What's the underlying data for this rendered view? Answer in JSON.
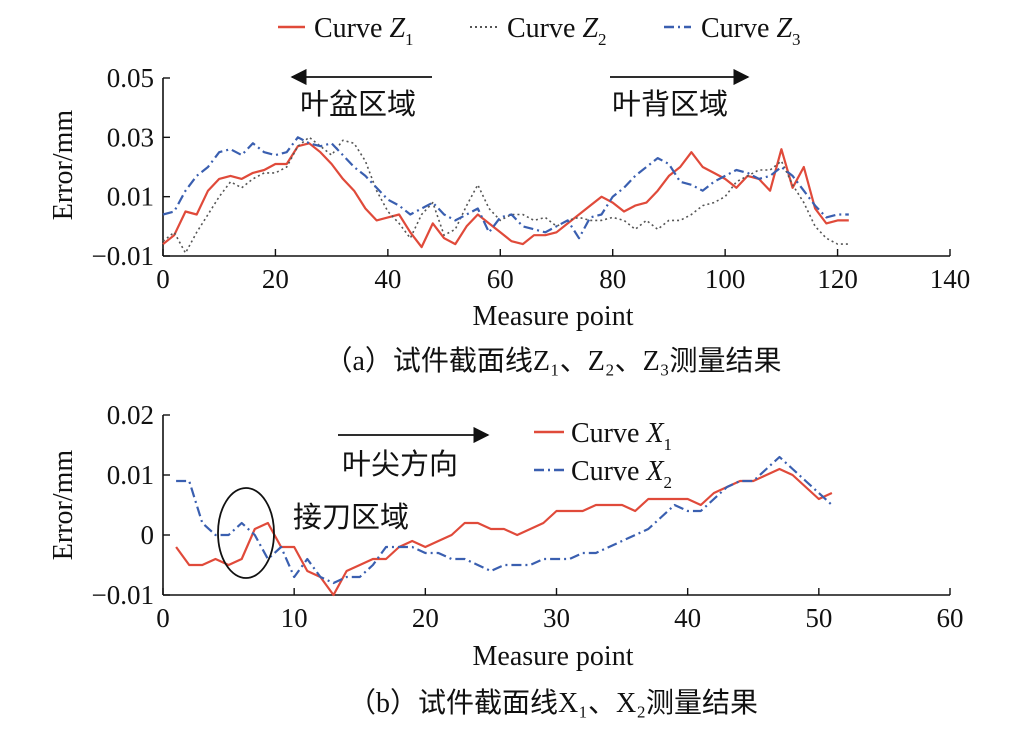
{
  "chart_data": [
    {
      "type": "line",
      "caption": "（a）试件截面线Z₁、Z₂、Z₃测量结果",
      "xlabel": "Measure point",
      "ylabel": "Error/mm",
      "xlim": [
        0,
        140
      ],
      "ylim": [
        -0.01,
        0.05
      ],
      "xticks": [
        "0",
        "20",
        "40",
        "60",
        "80",
        "100",
        "120",
        "140"
      ],
      "yticks": [
        "−0.01",
        "0.01",
        "0.03",
        "0.05"
      ],
      "legend_position": "top",
      "annotations": [
        {
          "text": "叶盆区域",
          "arrow": "left"
        },
        {
          "text": "叶背区域",
          "arrow": "right"
        }
      ],
      "series": [
        {
          "name": "Curve Z1",
          "label_main": "Curve ",
          "label_var": "Z",
          "label_sub": "1",
          "color": "#e04a3a",
          "dash": "solid",
          "x": [
            0,
            2,
            4,
            6,
            8,
            10,
            12,
            14,
            16,
            18,
            20,
            22,
            24,
            26,
            28,
            30,
            32,
            34,
            36,
            38,
            40,
            42,
            44,
            46,
            48,
            50,
            52,
            54,
            56,
            58,
            60,
            62,
            64,
            66,
            68,
            70,
            72,
            74,
            76,
            78,
            80,
            82,
            84,
            86,
            88,
            90,
            92,
            94,
            96,
            98,
            100,
            102,
            104,
            106,
            108,
            110,
            112,
            114,
            116,
            118,
            120,
            122
          ],
          "y": [
            -0.006,
            -0.003,
            0.005,
            0.004,
            0.012,
            0.016,
            0.017,
            0.016,
            0.018,
            0.019,
            0.021,
            0.021,
            0.027,
            0.028,
            0.025,
            0.021,
            0.016,
            0.012,
            0.006,
            0.002,
            0.003,
            0.004,
            -0.002,
            -0.007,
            0.001,
            -0.004,
            -0.006,
            0.0,
            0.004,
            0.001,
            -0.002,
            -0.005,
            -0.006,
            -0.003,
            -0.003,
            -0.002,
            0.001,
            0.004,
            0.007,
            0.01,
            0.008,
            0.005,
            0.007,
            0.008,
            0.012,
            0.017,
            0.02,
            0.025,
            0.02,
            0.018,
            0.016,
            0.013,
            0.017,
            0.016,
            0.012,
            0.026,
            0.013,
            0.02,
            0.006,
            0.001,
            0.002,
            0.002
          ]
        },
        {
          "name": "Curve Z2",
          "label_main": "Curve ",
          "label_var": "Z",
          "label_sub": "2",
          "color": "#555555",
          "dash": "dotted",
          "x": [
            0,
            2,
            4,
            6,
            8,
            10,
            12,
            14,
            16,
            18,
            20,
            22,
            24,
            26,
            28,
            30,
            32,
            34,
            36,
            38,
            40,
            42,
            44,
            46,
            48,
            50,
            52,
            54,
            56,
            58,
            60,
            62,
            64,
            66,
            68,
            70,
            72,
            74,
            76,
            78,
            80,
            82,
            84,
            86,
            88,
            90,
            92,
            94,
            96,
            98,
            100,
            102,
            104,
            106,
            108,
            110,
            112,
            114,
            116,
            118,
            120,
            122
          ],
          "y": [
            -0.005,
            -0.002,
            -0.009,
            -0.002,
            0.004,
            0.01,
            0.015,
            0.013,
            0.016,
            0.018,
            0.018,
            0.02,
            0.027,
            0.03,
            0.027,
            0.024,
            0.029,
            0.028,
            0.022,
            0.012,
            0.005,
            0.001,
            -0.004,
            0.004,
            0.008,
            -0.003,
            -0.001,
            0.007,
            0.014,
            0.006,
            0.002,
            0.004,
            0.004,
            0.002,
            0.003,
            0.0,
            0.002,
            0.003,
            0.002,
            0.002,
            0.003,
            0.002,
            -0.001,
            0.002,
            -0.001,
            0.002,
            0.002,
            0.004,
            0.007,
            0.008,
            0.01,
            0.015,
            0.017,
            0.019,
            0.019,
            0.022,
            0.014,
            0.008,
            0.0,
            -0.004,
            -0.006,
            -0.006
          ]
        },
        {
          "name": "Curve Z3",
          "label_main": "Curve ",
          "label_var": "Z",
          "label_sub": "3",
          "color": "#3a5fb0",
          "dash": "dashdot",
          "x": [
            0,
            2,
            4,
            6,
            8,
            10,
            12,
            14,
            16,
            18,
            20,
            22,
            24,
            26,
            28,
            30,
            32,
            34,
            36,
            38,
            40,
            42,
            44,
            46,
            48,
            50,
            52,
            54,
            56,
            58,
            60,
            62,
            64,
            66,
            68,
            70,
            72,
            74,
            76,
            78,
            80,
            82,
            84,
            86,
            88,
            90,
            92,
            94,
            96,
            98,
            100,
            102,
            104,
            106,
            108,
            110,
            112,
            114,
            116,
            118,
            120,
            122
          ],
          "y": [
            0.004,
            0.005,
            0.012,
            0.017,
            0.02,
            0.025,
            0.026,
            0.024,
            0.028,
            0.025,
            0.024,
            0.025,
            0.03,
            0.028,
            0.027,
            0.028,
            0.024,
            0.02,
            0.017,
            0.013,
            0.009,
            0.007,
            0.004,
            0.006,
            0.008,
            0.004,
            0.002,
            0.004,
            0.006,
            -0.002,
            0.003,
            0.004,
            0.0,
            -0.001,
            -0.002,
            0.0,
            0.002,
            -0.004,
            0.003,
            0.004,
            0.01,
            0.013,
            0.017,
            0.02,
            0.023,
            0.021,
            0.015,
            0.014,
            0.012,
            0.015,
            0.017,
            0.019,
            0.018,
            0.016,
            0.017,
            0.02,
            0.017,
            0.012,
            0.007,
            0.003,
            0.004,
            0.004
          ]
        }
      ]
    },
    {
      "type": "line",
      "caption": "（b）试件截面线X₁、X₂测量结果",
      "xlabel": "Measure point",
      "ylabel": "Error/mm",
      "xlim": [
        0,
        60
      ],
      "ylim": [
        -0.01,
        0.02
      ],
      "xticks": [
        "0",
        "10",
        "20",
        "30",
        "40",
        "50",
        "60"
      ],
      "yticks": [
        "−0.01",
        "0",
        "0.01",
        "0.02"
      ],
      "legend_position": "top-right",
      "annotations": [
        {
          "text": "叶尖方向",
          "arrow": "right"
        },
        {
          "text": "接刀区域",
          "marker": "ellipse"
        }
      ],
      "series": [
        {
          "name": "Curve X1",
          "label_main": "Curve ",
          "label_var": "X",
          "label_sub": "1",
          "color": "#e04a3a",
          "dash": "solid",
          "x": [
            1,
            2,
            3,
            4,
            5,
            6,
            7,
            8,
            9,
            10,
            11,
            12,
            13,
            14,
            15,
            16,
            17,
            18,
            19,
            20,
            21,
            22,
            23,
            24,
            25,
            26,
            27,
            28,
            29,
            30,
            31,
            32,
            33,
            34,
            35,
            36,
            37,
            38,
            39,
            40,
            41,
            42,
            43,
            44,
            45,
            46,
            47,
            48,
            49,
            50,
            51
          ],
          "y": [
            -0.002,
            -0.005,
            -0.005,
            -0.004,
            -0.005,
            -0.004,
            0.001,
            0.002,
            -0.002,
            -0.002,
            -0.006,
            -0.007,
            -0.01,
            -0.006,
            -0.005,
            -0.004,
            -0.004,
            -0.002,
            -0.001,
            -0.002,
            -0.001,
            0.0,
            0.002,
            0.002,
            0.001,
            0.001,
            0.0,
            0.001,
            0.002,
            0.004,
            0.004,
            0.004,
            0.005,
            0.005,
            0.005,
            0.004,
            0.006,
            0.006,
            0.006,
            0.006,
            0.005,
            0.007,
            0.008,
            0.009,
            0.009,
            0.01,
            0.011,
            0.01,
            0.008,
            0.006,
            0.007
          ]
        },
        {
          "name": "Curve X2",
          "label_main": "Curve ",
          "label_var": "X",
          "label_sub": "2",
          "color": "#3a5fb0",
          "dash": "dashdot",
          "x": [
            1,
            2,
            3,
            4,
            5,
            6,
            7,
            8,
            9,
            10,
            11,
            12,
            13,
            14,
            15,
            16,
            17,
            18,
            19,
            20,
            21,
            22,
            23,
            24,
            25,
            26,
            27,
            28,
            29,
            30,
            31,
            32,
            33,
            34,
            35,
            36,
            37,
            38,
            39,
            40,
            41,
            42,
            43,
            44,
            45,
            46,
            47,
            48,
            49,
            50,
            51
          ],
          "y": [
            0.009,
            0.009,
            0.002,
            0.0,
            0.0,
            0.002,
            0.0,
            -0.004,
            -0.002,
            -0.007,
            -0.004,
            -0.007,
            -0.008,
            -0.007,
            -0.007,
            -0.005,
            -0.002,
            -0.002,
            -0.002,
            -0.003,
            -0.003,
            -0.004,
            -0.004,
            -0.005,
            -0.006,
            -0.005,
            -0.005,
            -0.005,
            -0.004,
            -0.004,
            -0.004,
            -0.003,
            -0.003,
            -0.002,
            -0.001,
            0.0,
            0.001,
            0.003,
            0.005,
            0.004,
            0.004,
            0.006,
            0.008,
            0.009,
            0.009,
            0.011,
            0.013,
            0.011,
            0.009,
            0.007,
            0.005
          ]
        }
      ]
    }
  ]
}
